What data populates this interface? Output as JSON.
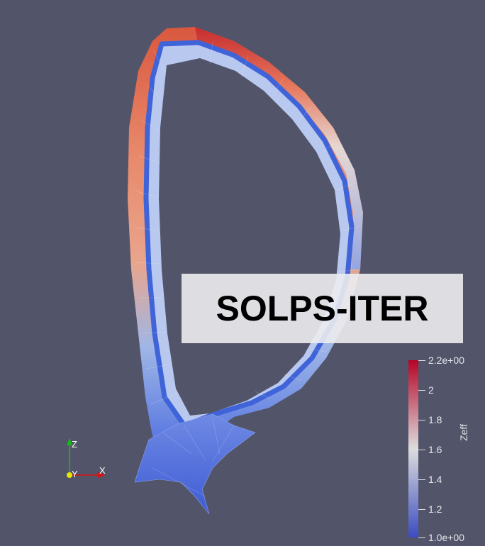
{
  "overlay": {
    "title": "SOLPS-ITER"
  },
  "colorbar": {
    "title": "Zeff",
    "tick_labels": [
      "2.2e+00",
      "2",
      "1.8",
      "1.6",
      "1.4",
      "1.2",
      "1.0e+00"
    ],
    "range": [
      1.0,
      2.2
    ],
    "colormap": [
      "#3b4cc0",
      "#dddddd",
      "#b40426"
    ]
  },
  "axes_widget": {
    "x_label": "X",
    "y_label": "Y",
    "z_label": "Z",
    "colors": {
      "x": "#e01010",
      "y": "#e6e600",
      "z": "#10c010"
    }
  },
  "colors": {
    "background": "#525469"
  }
}
